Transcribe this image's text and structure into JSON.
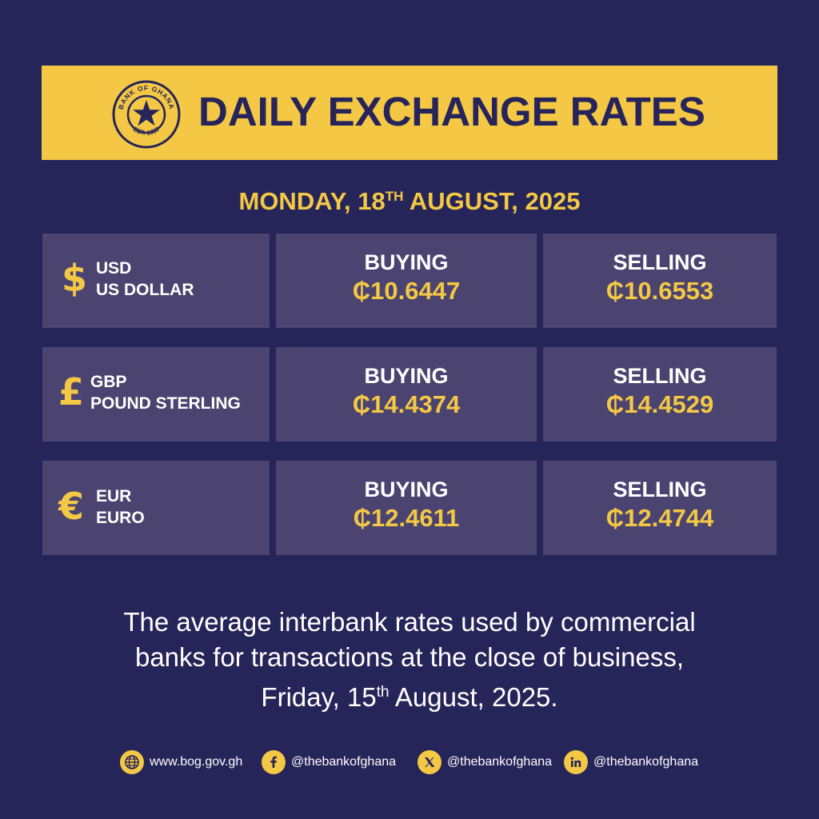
{
  "header": {
    "title": "DAILY EXCHANGE RATES",
    "seal_text_top": "BANK OF GHANA",
    "seal_text_bottom": "EST. 1957"
  },
  "date": {
    "weekday": "MONDAY, 18",
    "suffix": "TH",
    "rest": " AUGUST, 2025"
  },
  "rates": [
    {
      "symbol": "$",
      "code": "USD",
      "name": "US DOLLAR",
      "buying_label": "BUYING",
      "buying": "₵10.6447",
      "selling_label": "SELLING",
      "selling": "₵10.6553"
    },
    {
      "symbol": "£",
      "code": "GBP",
      "name": "POUND STERLING",
      "buying_label": "BUYING",
      "buying": "₵14.4374",
      "selling_label": "SELLING",
      "selling": "₵14.4529"
    },
    {
      "symbol": "€",
      "code": "EUR",
      "name": "EURO",
      "buying_label": "BUYING",
      "buying": "₵12.4611",
      "selling_label": "SELLING",
      "selling": "₵12.4744"
    }
  ],
  "note": {
    "line1": "The average interbank rates used by commercial",
    "line2": "banks for transactions at the close of business,",
    "line3_start": "Friday, 15",
    "line3_sup": "th",
    "line3_end": " August, 2025."
  },
  "footer": {
    "website": "www.bog.gov.gh",
    "facebook": "@thebankofghana",
    "x": "@thebankofghana",
    "linkedin": "@thebankofghana",
    "icons": [
      "globe-icon",
      "facebook-icon",
      "x-icon",
      "linkedin-icon"
    ]
  },
  "colors": {
    "background": "#262559",
    "accent": "#f4c844",
    "cell": "#4b4471",
    "text": "#ffffff",
    "title_text": "#26245a"
  }
}
